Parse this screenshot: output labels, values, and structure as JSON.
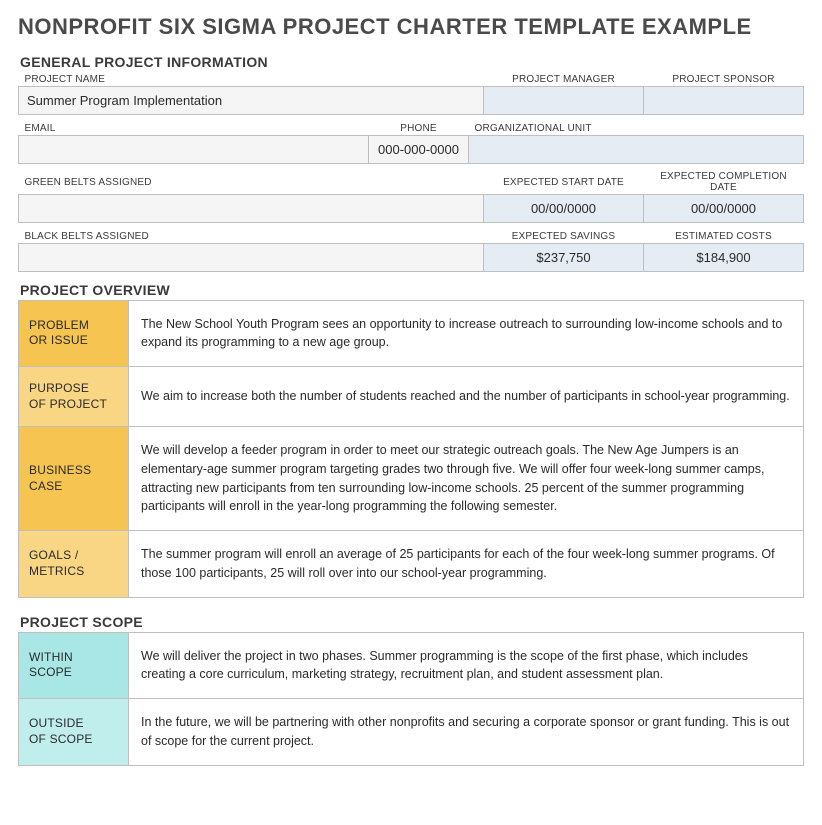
{
  "title": "NONPROFIT SIX SIGMA PROJECT CHARTER TEMPLATE EXAMPLE",
  "sections": {
    "general": {
      "header": "GENERAL PROJECT INFORMATION",
      "labels": {
        "project_name": "PROJECT NAME",
        "project_manager": "PROJECT MANAGER",
        "project_sponsor": "PROJECT SPONSOR",
        "email": "EMAIL",
        "phone": "PHONE",
        "org_unit": "ORGANIZATIONAL UNIT",
        "green_belts": "GREEN BELTS ASSIGNED",
        "expected_start": "EXPECTED START DATE",
        "expected_completion": "EXPECTED COMPLETION DATE",
        "black_belts": "BLACK BELTS ASSIGNED",
        "expected_savings": "EXPECTED SAVINGS",
        "estimated_costs": "ESTIMATED COSTS"
      },
      "values": {
        "project_name": "Summer Program Implementation",
        "project_manager": "",
        "project_sponsor": "",
        "email": "",
        "phone": "000-000-0000",
        "org_unit": "",
        "green_belts": "",
        "expected_start": "00/00/0000",
        "expected_completion": "00/00/0000",
        "black_belts": "",
        "expected_savings": "$237,750",
        "estimated_costs": "$184,900"
      }
    },
    "overview": {
      "header": "PROJECT OVERVIEW",
      "rows": [
        {
          "label": "PROBLEM OR ISSUE",
          "text": "The New School Youth Program sees an opportunity to increase outreach to surrounding low-income schools and to expand its programming to a new age group.",
          "style": "bright"
        },
        {
          "label": "PURPOSE OF PROJECT",
          "text": "We aim to increase both the number of students reached and the number of participants in school-year programming.",
          "style": "light"
        },
        {
          "label": "BUSINESS CASE",
          "text": "We will develop a feeder program in order to meet our strategic outreach goals. The New Age Jumpers is an elementary-age summer program targeting grades two through five. We will offer four week-long summer camps, attracting new participants from ten surrounding low-income schools. 25 percent of the summer programming participants will enroll in the year-long programming the following semester.",
          "style": "bright"
        },
        {
          "label": "GOALS / METRICS",
          "text": "The summer program will enroll an average of 25 participants for each of the four week-long summer programs. Of those 100 participants, 25 will roll over into our school-year programming.",
          "style": "light"
        }
      ]
    },
    "scope": {
      "header": "PROJECT SCOPE",
      "rows": [
        {
          "label": "WITHIN SCOPE",
          "text": "We will deliver the project in two phases. Summer programming is the scope of the first phase, which includes creating a core curriculum, marketing strategy, recruitment plan, and student assessment plan.",
          "style": "bright"
        },
        {
          "label": "OUTSIDE OF SCOPE",
          "text": "In the future, we will be partnering with other nonprofits and securing a corporate sponsor or grant funding. This is out of scope for the current project.",
          "style": "light"
        }
      ]
    }
  },
  "colors": {
    "title_color": "#4a4a4a",
    "border_color": "#bfbfbf",
    "cell_bg": "#f5f5f5",
    "cell_shaded_bg": "#e6ecf4",
    "orange_bright_bg": "#f6c451",
    "orange_light_bg": "#f9d684",
    "orange_text": "#b76f2a",
    "teal_bright_bg": "#a9e7e7",
    "teal_light_bg": "#bfeeec",
    "teal_text": "#3a8a8a"
  }
}
